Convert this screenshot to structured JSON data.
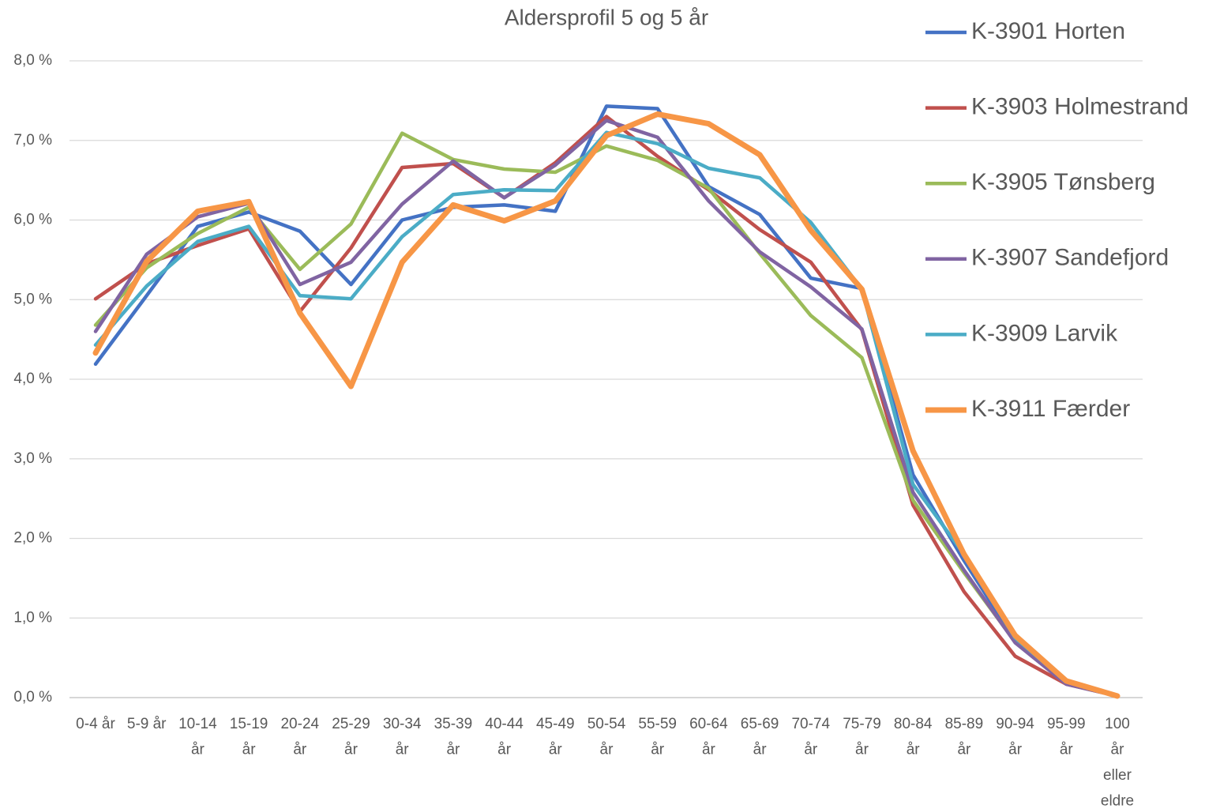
{
  "chart_data": {
    "type": "line",
    "title": "Aldersprofil 5 og 5 år",
    "categories": [
      "0-4 år",
      "5-9 år",
      "10-14 år",
      "15-19 år",
      "20-24 år",
      "25-29 år",
      "30-34 år",
      "35-39 år",
      "40-44 år",
      "45-49 år",
      "50-54 år",
      "55-59 år",
      "60-64 år",
      "65-69 år",
      "70-74 år",
      "75-79 år",
      "80-84 år",
      "85-89 år",
      "90-94 år",
      "95-99 år",
      "100 år eller eldre"
    ],
    "ylim": [
      0,
      8
    ],
    "yticks": [
      {
        "value": 0,
        "label": "0,0 %"
      },
      {
        "value": 1,
        "label": "1,0 %"
      },
      {
        "value": 2,
        "label": "2,0 %"
      },
      {
        "value": 3,
        "label": "3,0 %"
      },
      {
        "value": 4,
        "label": "4,0 %"
      },
      {
        "value": 5,
        "label": "5,0 %"
      },
      {
        "value": 6,
        "label": "6,0 %"
      },
      {
        "value": 7,
        "label": "7,0 %"
      },
      {
        "value": 8,
        "label": "8,0 %"
      }
    ],
    "grid": true,
    "legend": "right",
    "series": [
      {
        "name": "K-3901 Horten",
        "color": "#4472c4",
        "line_width": 4.5,
        "values": [
          4.19,
          5.05,
          5.92,
          6.1,
          5.86,
          5.19,
          6.0,
          6.16,
          6.19,
          6.11,
          7.43,
          7.4,
          6.42,
          6.07,
          5.27,
          5.14,
          2.8,
          1.72,
          0.72,
          0.17,
          0.03
        ]
      },
      {
        "name": "K-3903 Holmestrand",
        "color": "#c0504d",
        "line_width": 4.5,
        "values": [
          5.01,
          5.45,
          5.68,
          5.89,
          4.85,
          5.65,
          6.66,
          6.71,
          6.28,
          6.72,
          7.3,
          6.8,
          6.38,
          5.88,
          5.47,
          4.62,
          2.42,
          1.33,
          0.52,
          0.17,
          0.02
        ]
      },
      {
        "name": "K-3905 Tønsberg",
        "color": "#9bbb59",
        "line_width": 4.5,
        "values": [
          4.68,
          5.4,
          5.83,
          6.16,
          5.38,
          5.95,
          7.09,
          6.76,
          6.64,
          6.6,
          6.93,
          6.75,
          6.4,
          5.58,
          4.8,
          4.27,
          2.48,
          1.57,
          0.7,
          0.18,
          0.03
        ]
      },
      {
        "name": "K-3907 Sandefjord",
        "color": "#8064a2",
        "line_width": 4.5,
        "values": [
          4.6,
          5.57,
          6.04,
          6.21,
          5.19,
          5.47,
          6.2,
          6.74,
          6.28,
          6.69,
          7.25,
          7.04,
          6.24,
          5.6,
          5.16,
          4.63,
          2.58,
          1.6,
          0.69,
          0.17,
          0.02
        ]
      },
      {
        "name": "K-3909 Larvik",
        "color": "#4bacc6",
        "line_width": 4.5,
        "values": [
          4.43,
          5.17,
          5.73,
          5.92,
          5.05,
          5.01,
          5.79,
          6.32,
          6.38,
          6.37,
          7.1,
          6.96,
          6.65,
          6.53,
          5.97,
          5.13,
          2.68,
          1.8,
          0.75,
          0.2,
          0.03
        ]
      },
      {
        "name": "K-3911 Færder",
        "color": "#f79646",
        "line_width": 7,
        "values": [
          4.33,
          5.48,
          6.11,
          6.23,
          4.83,
          3.91,
          5.47,
          6.19,
          5.99,
          6.24,
          7.06,
          7.33,
          7.21,
          6.82,
          5.87,
          5.13,
          3.1,
          1.8,
          0.78,
          0.21,
          0.02
        ]
      }
    ]
  }
}
